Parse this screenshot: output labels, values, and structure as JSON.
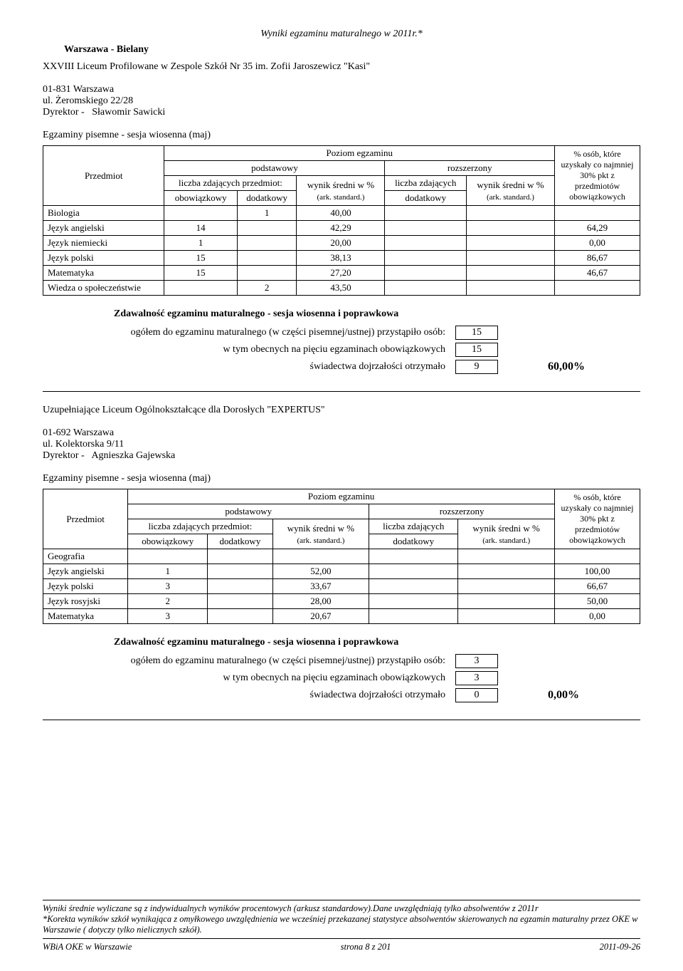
{
  "page_title": "Wyniki egzaminu maturalnego w 2011r.*",
  "region": "Warszawa - Bielany",
  "header_labels": {
    "przedmiot": "Przedmiot",
    "poziom": "Poziom egzaminu",
    "podstawowy": "podstawowy",
    "rozszerzony": "rozszerzony",
    "liczba_p": "liczba zdających przedmiot:",
    "wynik_p": "wynik średni w %",
    "ark": "(ark. standard.)",
    "liczba_r": "liczba zdających",
    "wynik_r": "wynik średni w %",
    "obow": "obowiązkowy",
    "dod": "dodatkowy",
    "pct_osob": "% osób, które uzyskały co najmniej 30% pkt z przedmiotów obowiązkowych"
  },
  "pass_labels": {
    "title": "Zdawalność egzaminu maturalnego - sesja wiosenna i poprawkowa",
    "ogolem": "ogółem do egzaminu maturalnego (w części pisemnej/ustnej) przystąpiło osób:",
    "obecni": "w tym obecnych na pięciu egzaminach obowiązkowych",
    "swiadectwa": "świadectwa dojrzałości otrzymało"
  },
  "schools": [
    {
      "name": "XXVIII Liceum Profilowane w Zespole Szkół Nr 35 im. Zofii Jaroszewicz \"Kasi\"",
      "city": "01-831 Warszawa",
      "street": "ul. Żeromskiego 22/28",
      "director_label": "Dyrektor -",
      "director": "Sławomir Sawicki",
      "exam_title": "Egzaminy pisemne - sesja wiosenna (maj)",
      "rows": [
        {
          "subject": "Biologia",
          "obow": "",
          "dod": "1",
          "wynik_p": "40,00",
          "roz_dod": "",
          "wynik_r": "",
          "pct": ""
        },
        {
          "subject": "Język angielski",
          "obow": "14",
          "dod": "",
          "wynik_p": "42,29",
          "roz_dod": "",
          "wynik_r": "",
          "pct": "64,29"
        },
        {
          "subject": "Język niemiecki",
          "obow": "1",
          "dod": "",
          "wynik_p": "20,00",
          "roz_dod": "",
          "wynik_r": "",
          "pct": "0,00"
        },
        {
          "subject": "Język polski",
          "obow": "15",
          "dod": "",
          "wynik_p": "38,13",
          "roz_dod": "",
          "wynik_r": "",
          "pct": "86,67"
        },
        {
          "subject": "Matematyka",
          "obow": "15",
          "dod": "",
          "wynik_p": "27,20",
          "roz_dod": "",
          "wynik_r": "",
          "pct": "46,67"
        },
        {
          "subject": "Wiedza o społeczeństwie",
          "obow": "",
          "dod": "2",
          "wynik_p": "43,50",
          "roz_dod": "",
          "wynik_r": "",
          "pct": ""
        }
      ],
      "pass": {
        "ogolem": "15",
        "obecni": "15",
        "swiadectwa": "9",
        "pct": "60,00%"
      }
    },
    {
      "name": "Uzupełniające Liceum Ogólnokształcące dla Dorosłych \"EXPERTUS\"",
      "city": "01-692 Warszawa",
      "street": "ul. Kolektorska 9/11",
      "director_label": "Dyrektor -",
      "director": "Agnieszka Gajewska",
      "exam_title": "Egzaminy pisemne - sesja wiosenna (maj)",
      "rows": [
        {
          "subject": "Geografia",
          "obow": "",
          "dod": "",
          "wynik_p": "",
          "roz_dod": "",
          "wynik_r": "",
          "pct": ""
        },
        {
          "subject": "Język angielski",
          "obow": "1",
          "dod": "",
          "wynik_p": "52,00",
          "roz_dod": "",
          "wynik_r": "",
          "pct": "100,00"
        },
        {
          "subject": "Język polski",
          "obow": "3",
          "dod": "",
          "wynik_p": "33,67",
          "roz_dod": "",
          "wynik_r": "",
          "pct": "66,67"
        },
        {
          "subject": "Język rosyjski",
          "obow": "2",
          "dod": "",
          "wynik_p": "28,00",
          "roz_dod": "",
          "wynik_r": "",
          "pct": "50,00"
        },
        {
          "subject": "Matematyka",
          "obow": "3",
          "dod": "",
          "wynik_p": "20,67",
          "roz_dod": "",
          "wynik_r": "",
          "pct": "0,00"
        }
      ],
      "pass": {
        "ogolem": "3",
        "obecni": "3",
        "swiadectwa": "0",
        "pct": "0,00%"
      }
    }
  ],
  "footer": {
    "note1": "Wyniki średnie wyliczane są z indywidualnych wyników procentowych (arkusz standardowy).Dane uwzględniają tylko absolwentów z 2011r",
    "note2": "*Korekta wyników szkół wynikająca z omyłkowego uwzględnienia we wcześniej przekazanej statystyce  absolwentów skierowanych na egzamin maturalny przez OKE w Warszawie ( dotyczy tylko nielicznych szkół).",
    "left": "WBiA OKE w Warszawie",
    "center": "strona 8 z 201",
    "right": "2011-09-26"
  }
}
